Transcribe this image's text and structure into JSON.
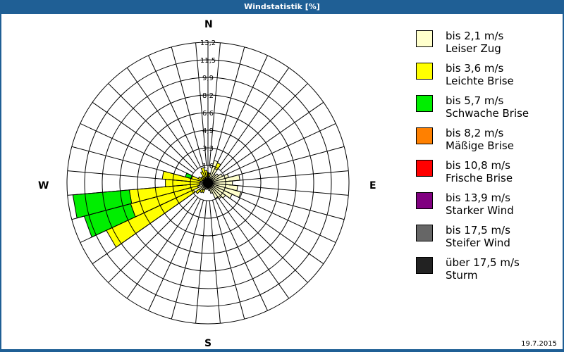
{
  "title": "Windstatistik [%]",
  "date": "19.7.2015",
  "compass": {
    "n": "N",
    "e": "E",
    "s": "S",
    "w": "W"
  },
  "legend": [
    {
      "range": "bis 2,1 m/s",
      "name": "Leiser Zug",
      "color": "#ffffcc"
    },
    {
      "range": "bis 3,6 m/s",
      "name": "Leichte Brise",
      "color": "#ffff00"
    },
    {
      "range": "bis 5,7 m/s",
      "name": "Schwache Brise",
      "color": "#00ee00"
    },
    {
      "range": "bis 8,2 m/s",
      "name": "Mäßige Brise",
      "color": "#ff8000"
    },
    {
      "range": "bis 10,8 m/s",
      "name": "Frische Brise",
      "color": "#ff0000"
    },
    {
      "range": "bis 13,9 m/s",
      "name": "Starker Wind",
      "color": "#800080"
    },
    {
      "range": "bis 17,5 m/s",
      "name": "Steifer Wind",
      "color": "#666666"
    },
    {
      "range": "über 17,5 m/s",
      "name": "Sturm",
      "color": "#222222"
    }
  ],
  "chart_data": {
    "type": "polar-stacked-bar",
    "title": "Windstatistik [%]",
    "radial_ticks": [
      "1,6",
      "3,3",
      "4,9",
      "6,6",
      "8,2",
      "9,9",
      "11,5",
      "13,2"
    ],
    "radial_max": 13.2,
    "sector_width_deg": 10,
    "series_names": [
      "bis 2,1 m/s",
      "bis 3,6 m/s",
      "bis 5,7 m/s"
    ],
    "sectors": [
      {
        "dir": 0,
        "values": [
          0.6,
          0.4,
          0
        ]
      },
      {
        "dir": 10,
        "values": [
          0.6,
          0.3,
          0
        ]
      },
      {
        "dir": 20,
        "values": [
          2.2,
          0,
          0
        ]
      },
      {
        "dir": 30,
        "values": [
          1.5,
          0.6,
          0
        ]
      },
      {
        "dir": 40,
        "values": [
          1.0,
          0,
          0
        ]
      },
      {
        "dir": 50,
        "values": [
          1.2,
          0,
          0
        ]
      },
      {
        "dir": 60,
        "values": [
          1.5,
          0,
          0
        ]
      },
      {
        "dir": 70,
        "values": [
          2.0,
          0,
          0
        ]
      },
      {
        "dir": 80,
        "values": [
          3.0,
          0,
          0
        ]
      },
      {
        "dir": 90,
        "values": [
          2.3,
          0,
          0
        ]
      },
      {
        "dir": 100,
        "values": [
          2.8,
          0,
          0
        ]
      },
      {
        "dir": 110,
        "values": [
          3.2,
          0,
          0
        ]
      },
      {
        "dir": 120,
        "values": [
          2.5,
          0,
          0
        ]
      },
      {
        "dir": 130,
        "values": [
          2.0,
          0,
          0
        ]
      },
      {
        "dir": 140,
        "values": [
          1.8,
          0,
          0
        ]
      },
      {
        "dir": 150,
        "values": [
          1.6,
          0,
          0
        ]
      },
      {
        "dir": 160,
        "values": [
          1.0,
          0,
          0
        ]
      },
      {
        "dir": 170,
        "values": [
          0.7,
          0,
          0
        ]
      },
      {
        "dir": 180,
        "values": [
          0.5,
          0,
          0
        ]
      },
      {
        "dir": 190,
        "values": [
          0.6,
          0,
          0
        ]
      },
      {
        "dir": 200,
        "values": [
          0.6,
          0,
          0
        ]
      },
      {
        "dir": 210,
        "values": [
          0.7,
          0.3,
          0
        ]
      },
      {
        "dir": 220,
        "values": [
          0.8,
          0.3,
          0
        ]
      },
      {
        "dir": 230,
        "values": [
          1.0,
          0.4,
          0
        ]
      },
      {
        "dir": 240,
        "values": [
          1.5,
          9.0,
          0
        ]
      },
      {
        "dir": 250,
        "values": [
          1.0,
          6.5,
          4.5
        ]
      },
      {
        "dir": 260,
        "values": [
          0.8,
          6.6,
          5.3
        ]
      },
      {
        "dir": 270,
        "values": [
          0.8,
          3.2,
          0
        ]
      },
      {
        "dir": 280,
        "values": [
          0.7,
          3.6,
          0
        ]
      },
      {
        "dir": 290,
        "values": [
          0.6,
          1.0,
          0.6
        ]
      },
      {
        "dir": 300,
        "values": [
          0.5,
          0.5,
          0
        ]
      },
      {
        "dir": 310,
        "values": [
          0.5,
          0.3,
          0
        ]
      },
      {
        "dir": 320,
        "values": [
          0.4,
          0.4,
          0
        ]
      },
      {
        "dir": 330,
        "values": [
          0.5,
          0.7,
          0
        ]
      },
      {
        "dir": 340,
        "values": [
          0.6,
          0.9,
          0
        ]
      },
      {
        "dir": 350,
        "values": [
          0.6,
          0.6,
          0
        ]
      }
    ],
    "legend_position": "right"
  }
}
